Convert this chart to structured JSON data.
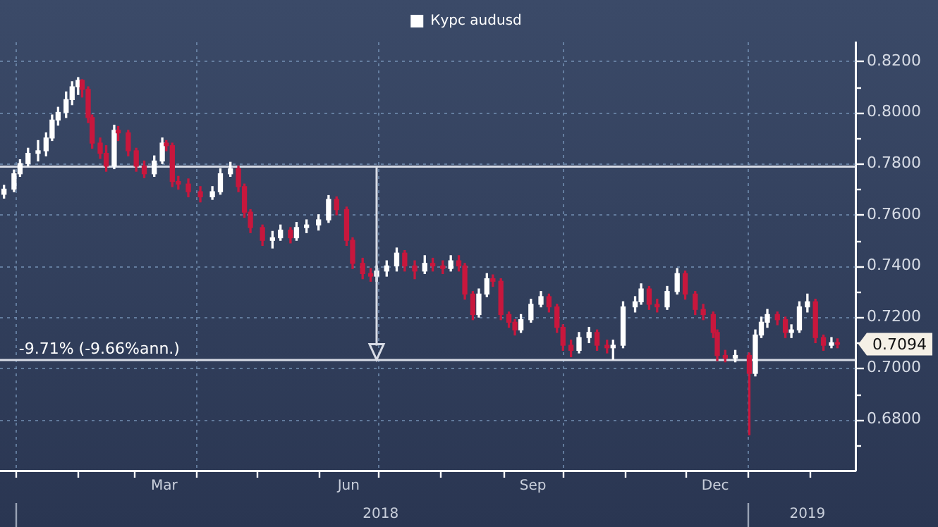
{
  "chart_data": {
    "type": "candlestick",
    "series": [
      {
        "name": "Курс audusd",
        "color": "#ffffff",
        "x": [
          "2017-12-26",
          "2017-12-31",
          "2018-01-03",
          "2018-01-07",
          "2018-01-12",
          "2018-01-16",
          "2018-01-19",
          "2018-01-22",
          "2018-01-26",
          "2018-01-29",
          "2018-02-01",
          "2018-02-03",
          "2018-02-06",
          "2018-02-08",
          "2018-02-12",
          "2018-02-15",
          "2018-02-19",
          "2018-02-21",
          "2018-02-26",
          "2018-03-02",
          "2018-03-06",
          "2018-03-11",
          "2018-03-15",
          "2018-03-17",
          "2018-03-20",
          "2018-03-23",
          "2018-03-28",
          "2018-04-03",
          "2018-04-09",
          "2018-04-13",
          "2018-04-18",
          "2018-04-22",
          "2018-04-25",
          "2018-04-28",
          "2018-05-04",
          "2018-05-09",
          "2018-05-13",
          "2018-05-18",
          "2018-05-21",
          "2018-05-26",
          "2018-06-01",
          "2018-06-06",
          "2018-06-10",
          "2018-06-15",
          "2018-06-18",
          "2018-06-23",
          "2018-06-27",
          "2018-06-30",
          "2018-07-05",
          "2018-07-10",
          "2018-07-14",
          "2018-07-19",
          "2018-07-24",
          "2018-07-28",
          "2018-08-02",
          "2018-08-06",
          "2018-08-10",
          "2018-08-13",
          "2018-08-17",
          "2018-08-20",
          "2018-08-24",
          "2018-08-27",
          "2018-08-31",
          "2018-09-04",
          "2018-09-07",
          "2018-09-10",
          "2018-09-15",
          "2018-09-20",
          "2018-09-24",
          "2018-09-28",
          "2018-10-01",
          "2018-10-05",
          "2018-10-09",
          "2018-10-14",
          "2018-10-18",
          "2018-10-23",
          "2018-10-26",
          "2018-10-31",
          "2018-11-06",
          "2018-11-09",
          "2018-11-13",
          "2018-11-17",
          "2018-11-22",
          "2018-11-27",
          "2018-12-01",
          "2018-12-06",
          "2018-12-10",
          "2018-12-15",
          "2018-12-17",
          "2018-12-21",
          "2018-12-26",
          "2019-01-02",
          "2019-01-05",
          "2019-01-08",
          "2019-01-11",
          "2019-01-16",
          "2019-01-20",
          "2019-01-23",
          "2019-01-27",
          "2019-01-31",
          "2019-02-04",
          "2019-02-08",
          "2019-02-12",
          "2019-02-15"
        ],
        "ohlc": [
          [
            0.768,
            0.7715,
            0.7665,
            0.77
          ],
          [
            0.77,
            0.7775,
            0.769,
            0.776
          ],
          [
            0.776,
            0.7815,
            0.775,
            0.78
          ],
          [
            0.78,
            0.786,
            0.779,
            0.784
          ],
          [
            0.784,
            0.789,
            0.781,
            0.785
          ],
          [
            0.785,
            0.792,
            0.783,
            0.79
          ],
          [
            0.79,
            0.799,
            0.789,
            0.797
          ],
          [
            0.797,
            0.802,
            0.795,
            0.8
          ],
          [
            0.8,
            0.808,
            0.798,
            0.805
          ],
          [
            0.805,
            0.812,
            0.803,
            0.81
          ],
          [
            0.81,
            0.8136,
            0.807,
            0.8125
          ],
          [
            0.8125,
            0.8128,
            0.806,
            0.809
          ],
          [
            0.809,
            0.81,
            0.796,
            0.798
          ],
          [
            0.798,
            0.799,
            0.786,
            0.788
          ],
          [
            0.788,
            0.79,
            0.782,
            0.784
          ],
          [
            0.784,
            0.787,
            0.777,
            0.779
          ],
          [
            0.779,
            0.795,
            0.778,
            0.793
          ],
          [
            0.793,
            0.7945,
            0.789,
            0.792
          ],
          [
            0.792,
            0.793,
            0.783,
            0.785
          ],
          [
            0.785,
            0.786,
            0.777,
            0.779
          ],
          [
            0.779,
            0.781,
            0.7745,
            0.776
          ],
          [
            0.776,
            0.783,
            0.775,
            0.781
          ],
          [
            0.781,
            0.79,
            0.78,
            0.788
          ],
          [
            0.788,
            0.789,
            0.785,
            0.787
          ],
          [
            0.787,
            0.788,
            0.771,
            0.773
          ],
          [
            0.773,
            0.775,
            0.77,
            0.772
          ],
          [
            0.772,
            0.774,
            0.767,
            0.769
          ],
          [
            0.769,
            0.771,
            0.765,
            0.767
          ],
          [
            0.767,
            0.771,
            0.766,
            0.769
          ],
          [
            0.769,
            0.778,
            0.768,
            0.776
          ],
          [
            0.776,
            0.7805,
            0.775,
            0.778
          ],
          [
            0.778,
            0.779,
            0.769,
            0.771
          ],
          [
            0.771,
            0.772,
            0.759,
            0.761
          ],
          [
            0.761,
            0.762,
            0.753,
            0.755
          ],
          [
            0.755,
            0.756,
            0.748,
            0.75
          ],
          [
            0.75,
            0.7535,
            0.747,
            0.751
          ],
          [
            0.751,
            0.756,
            0.75,
            0.754
          ],
          [
            0.754,
            0.755,
            0.749,
            0.751
          ],
          [
            0.751,
            0.757,
            0.75,
            0.755
          ],
          [
            0.755,
            0.758,
            0.753,
            0.756
          ],
          [
            0.756,
            0.76,
            0.754,
            0.758
          ],
          [
            0.758,
            0.7675,
            0.757,
            0.766
          ],
          [
            0.766,
            0.767,
            0.76,
            0.762
          ],
          [
            0.762,
            0.763,
            0.748,
            0.75
          ],
          [
            0.75,
            0.751,
            0.739,
            0.741
          ],
          [
            0.741,
            0.743,
            0.735,
            0.737
          ],
          [
            0.737,
            0.739,
            0.734,
            0.736
          ],
          [
            0.736,
            0.74,
            0.734,
            0.738
          ],
          [
            0.738,
            0.742,
            0.736,
            0.74
          ],
          [
            0.74,
            0.747,
            0.738,
            0.745
          ],
          [
            0.745,
            0.746,
            0.738,
            0.74
          ],
          [
            0.74,
            0.742,
            0.735,
            0.738
          ],
          [
            0.738,
            0.744,
            0.737,
            0.741
          ],
          [
            0.741,
            0.743,
            0.738,
            0.74
          ],
          [
            0.74,
            0.742,
            0.737,
            0.739
          ],
          [
            0.739,
            0.744,
            0.738,
            0.742
          ],
          [
            0.742,
            0.744,
            0.738,
            0.74
          ],
          [
            0.74,
            0.741,
            0.727,
            0.729
          ],
          [
            0.729,
            0.73,
            0.719,
            0.721
          ],
          [
            0.721,
            0.731,
            0.72,
            0.729
          ],
          [
            0.729,
            0.737,
            0.728,
            0.735
          ],
          [
            0.735,
            0.7365,
            0.732,
            0.734
          ],
          [
            0.734,
            0.735,
            0.719,
            0.721
          ],
          [
            0.721,
            0.722,
            0.716,
            0.718
          ],
          [
            0.718,
            0.719,
            0.713,
            0.715
          ],
          [
            0.715,
            0.721,
            0.714,
            0.719
          ],
          [
            0.719,
            0.727,
            0.718,
            0.725
          ],
          [
            0.725,
            0.73,
            0.724,
            0.728
          ],
          [
            0.728,
            0.729,
            0.722,
            0.724
          ],
          [
            0.724,
            0.725,
            0.714,
            0.716
          ],
          [
            0.716,
            0.717,
            0.707,
            0.709
          ],
          [
            0.709,
            0.711,
            0.7045,
            0.707
          ],
          [
            0.707,
            0.714,
            0.706,
            0.712
          ],
          [
            0.712,
            0.716,
            0.71,
            0.714
          ],
          [
            0.714,
            0.715,
            0.707,
            0.709
          ],
          [
            0.709,
            0.711,
            0.706,
            0.708
          ],
          [
            0.708,
            0.711,
            0.7035,
            0.709
          ],
          [
            0.709,
            0.726,
            0.708,
            0.724
          ],
          [
            0.724,
            0.728,
            0.722,
            0.726
          ],
          [
            0.726,
            0.733,
            0.725,
            0.731
          ],
          [
            0.731,
            0.732,
            0.723,
            0.725
          ],
          [
            0.725,
            0.727,
            0.722,
            0.724
          ],
          [
            0.724,
            0.732,
            0.723,
            0.73
          ],
          [
            0.73,
            0.739,
            0.729,
            0.737
          ],
          [
            0.737,
            0.738,
            0.727,
            0.729
          ],
          [
            0.729,
            0.73,
            0.721,
            0.723
          ],
          [
            0.723,
            0.725,
            0.719,
            0.721
          ],
          [
            0.721,
            0.722,
            0.712,
            0.714
          ],
          [
            0.714,
            0.715,
            0.703,
            0.705
          ],
          [
            0.705,
            0.707,
            0.7025,
            0.704
          ],
          [
            0.704,
            0.707,
            0.7025,
            0.705
          ],
          [
            0.705,
            0.706,
            0.674,
            0.698
          ],
          [
            0.698,
            0.715,
            0.697,
            0.713
          ],
          [
            0.713,
            0.72,
            0.712,
            0.718
          ],
          [
            0.718,
            0.723,
            0.716,
            0.721
          ],
          [
            0.721,
            0.722,
            0.717,
            0.719
          ],
          [
            0.719,
            0.72,
            0.712,
            0.714
          ],
          [
            0.714,
            0.717,
            0.712,
            0.715
          ],
          [
            0.715,
            0.726,
            0.714,
            0.724
          ],
          [
            0.724,
            0.729,
            0.722,
            0.726
          ],
          [
            0.726,
            0.727,
            0.71,
            0.712
          ],
          [
            0.712,
            0.713,
            0.707,
            0.709
          ],
          [
            0.709,
            0.712,
            0.708,
            0.71
          ],
          [
            0.71,
            0.7115,
            0.708,
            0.7094
          ]
        ],
        "colors": [
          "#ffffff",
          "#ffffff",
          "#ffffff",
          "#ffffff",
          "#ffffff",
          "#ffffff",
          "#ffffff",
          "#ffffff",
          "#ffffff",
          "#ffffff",
          "#ffffff",
          "#c8173d",
          "#c8173d",
          "#c8173d",
          "#c8173d",
          "#c8173d",
          "#ffffff",
          "#c8173d",
          "#c8173d",
          "#c8173d",
          "#c8173d",
          "#ffffff",
          "#ffffff",
          "#c8173d",
          "#c8173d",
          "#c8173d",
          "#c8173d",
          "#c8173d",
          "#ffffff",
          "#ffffff",
          "#ffffff",
          "#c8173d",
          "#c8173d",
          "#c8173d",
          "#c8173d",
          "#ffffff",
          "#ffffff",
          "#c8173d",
          "#ffffff",
          "#ffffff",
          "#ffffff",
          "#ffffff",
          "#c8173d",
          "#c8173d",
          "#c8173d",
          "#c8173d",
          "#c8173d",
          "#ffffff",
          "#ffffff",
          "#ffffff",
          "#c8173d",
          "#c8173d",
          "#ffffff",
          "#c8173d",
          "#c8173d",
          "#ffffff",
          "#c8173d",
          "#c8173d",
          "#c8173d",
          "#ffffff",
          "#ffffff",
          "#c8173d",
          "#c8173d",
          "#c8173d",
          "#c8173d",
          "#ffffff",
          "#ffffff",
          "#ffffff",
          "#c8173d",
          "#c8173d",
          "#c8173d",
          "#c8173d",
          "#ffffff",
          "#ffffff",
          "#c8173d",
          "#c8173d",
          "#ffffff",
          "#ffffff",
          "#ffffff",
          "#ffffff",
          "#c8173d",
          "#c8173d",
          "#ffffff",
          "#ffffff",
          "#c8173d",
          "#c8173d",
          "#c8173d",
          "#c8173d",
          "#c8173d",
          "#c8173d",
          "#ffffff",
          "#c8173d",
          "#ffffff",
          "#ffffff",
          "#ffffff",
          "#c8173d",
          "#c8173d",
          "#ffffff",
          "#ffffff",
          "#ffffff",
          "#c8173d",
          "#c8173d",
          "#ffffff",
          "#c8173d"
        ]
      }
    ],
    "xlim": [
      "2017-12-24",
      "2019-02-24"
    ],
    "xticks": [
      {
        "value": "2018-01-01",
        "label": null
      },
      {
        "value": "2018-02-01",
        "label": null
      },
      {
        "value": "2018-03-01",
        "label": null
      },
      {
        "value": "2018-03-16",
        "label": "Mar"
      },
      {
        "value": "2018-04-01",
        "label": null
      },
      {
        "value": "2018-05-01",
        "label": null
      },
      {
        "value": "2018-06-01",
        "label": null
      },
      {
        "value": "2018-06-16",
        "label": "Jun"
      },
      {
        "value": "2018-07-01",
        "label": null
      },
      {
        "value": "2018-08-01",
        "label": null
      },
      {
        "value": "2018-09-01",
        "label": null
      },
      {
        "value": "2018-09-16",
        "label": "Sep"
      },
      {
        "value": "2018-10-01",
        "label": null
      },
      {
        "value": "2018-11-01",
        "label": null
      },
      {
        "value": "2018-12-01",
        "label": null
      },
      {
        "value": "2018-12-16",
        "label": "Dec"
      },
      {
        "value": "2019-01-01",
        "label": null
      },
      {
        "value": "2019-02-01",
        "label": null
      }
    ],
    "x2lim": [
      "2017-12-24",
      "2019-02-24"
    ],
    "x2ticks": [
      {
        "value": "2018-01-01",
        "label": null
      },
      {
        "value": "2018-07-02",
        "label": "2018"
      },
      {
        "value": "2019-01-01",
        "label": null
      },
      {
        "value": "2019-01-31",
        "label": "2019"
      }
    ],
    "ylim": [
      0.66,
      0.8274
    ],
    "yticks": [
      {
        "value": 0.67,
        "label": null
      },
      {
        "value": 0.68,
        "label": "0.6800"
      },
      {
        "value": 0.69,
        "label": null
      },
      {
        "value": 0.7,
        "label": "0.7000"
      },
      {
        "value": 0.71,
        "label": null
      },
      {
        "value": 0.72,
        "label": "0.7200"
      },
      {
        "value": 0.73,
        "label": null
      },
      {
        "value": 0.74,
        "label": "0.7400"
      },
      {
        "value": 0.75,
        "label": null
      },
      {
        "value": 0.76,
        "label": "0.7600"
      },
      {
        "value": 0.77,
        "label": null
      },
      {
        "value": 0.78,
        "label": "0.7800"
      },
      {
        "value": 0.79,
        "label": null
      },
      {
        "value": 0.8,
        "label": "0.8000"
      },
      {
        "value": 0.81,
        "label": null
      },
      {
        "value": 0.82,
        "label": "0.8200"
      }
    ],
    "grid": true,
    "legend": "top",
    "ref_lines": [
      {
        "axis": "y",
        "value": 0.7788,
        "label": null,
        "color": "#d8dce6"
      },
      {
        "axis": "y",
        "value": 0.7032,
        "label": null,
        "color": "#d8dce6"
      },
      {
        "axis": "x",
        "value": "2018-06-30",
        "label": null,
        "color": "#d8dce6"
      }
    ],
    "annotations": [
      {
        "text": "-9.71% (-9.66%ann.)",
        "x": "2018-01-01",
        "y": 0.7032
      },
      "0.7094"
    ]
  }
}
